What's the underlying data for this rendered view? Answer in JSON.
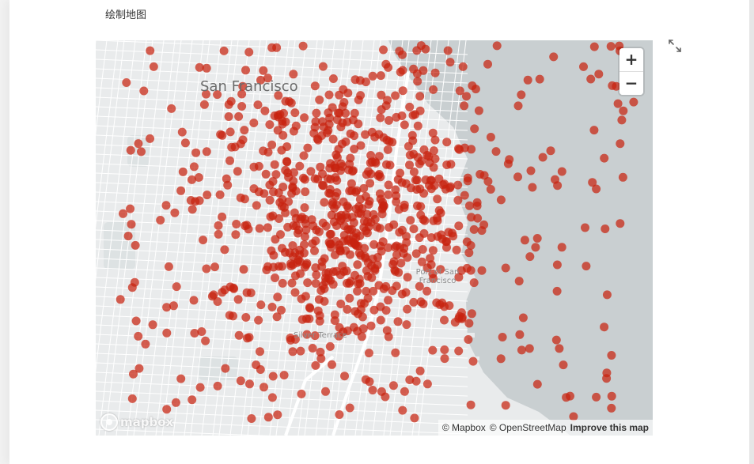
{
  "page": {
    "heading": "绘制地图"
  },
  "map": {
    "labels": {
      "city": "San Francisco",
      "port": "Port of San Francisco",
      "district": "Silver Terrace"
    },
    "controls": {
      "zoom_in": "+",
      "zoom_out": "−",
      "fullscreen_icon": "expand-icon"
    },
    "logo_text": "mapbox",
    "attribution": {
      "mapbox": "© Mapbox",
      "osm": "© OpenStreetMap",
      "improve": "Improve this map"
    },
    "colors": {
      "water": "#c9cfd1",
      "land": "#e9ebec",
      "park": "#dfe3e4",
      "road": "#ffffff",
      "point": "#c8230f"
    }
  }
}
